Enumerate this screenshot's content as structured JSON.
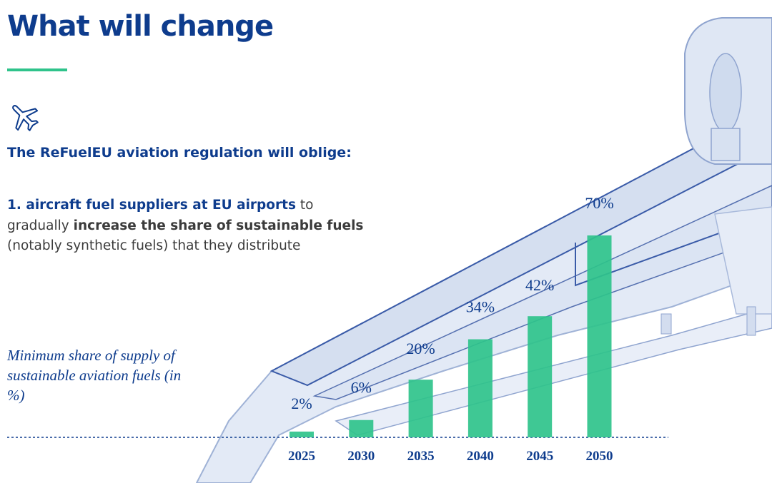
{
  "header": {
    "title": "What will change"
  },
  "intro": {
    "subtitle": "The ReFuelEU aviation regulation will oblige:",
    "point_lead": "1. aircraft fuel suppliers at EU airports",
    "point_to": " to",
    "point_gradually": "gradually ",
    "point_bold": "increase the share of sustainable fuels",
    "point_tail": "(notably synthetic fuels) that they distribute"
  },
  "chart_caption": "Minimum share of supply of sustainable aviation fuels (in %)",
  "icons": {
    "plane": "airplane-icon"
  },
  "colors": {
    "title_blue": "#0e3c8d",
    "accent_green": "#2fc38b",
    "bar_green": "#2fc38b",
    "plane_tint": "#dde6f5"
  },
  "chart_data": {
    "type": "bar",
    "title": "",
    "xlabel": "",
    "ylabel": "",
    "categories": [
      "2025",
      "2030",
      "2035",
      "2040",
      "2045",
      "2050"
    ],
    "values": [
      2,
      6,
      20,
      34,
      42,
      70
    ],
    "value_labels": [
      "2%",
      "6%",
      "20%",
      "34%",
      "42%",
      "70%"
    ],
    "ylim": [
      0,
      80
    ],
    "grid": false,
    "legend": "none"
  }
}
